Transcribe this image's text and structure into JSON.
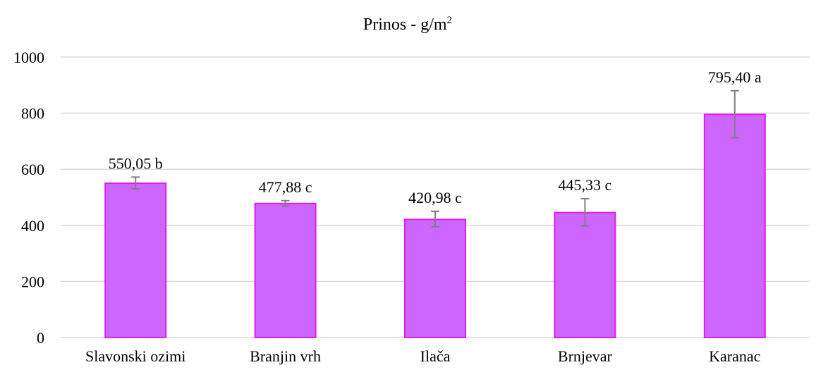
{
  "chart_data": {
    "type": "bar",
    "title": "Prinos - g/m",
    "title_superscript": "2",
    "xlabel": "",
    "ylabel": "",
    "categories": [
      "Slavonski ozimi",
      "Branjin vrh",
      "Ilača",
      "Brnjevar",
      "Karanac"
    ],
    "values": [
      550.05,
      477.88,
      420.98,
      445.33,
      795.4
    ],
    "data_labels": [
      "550,05 b",
      "477,88 c",
      "420,98 c",
      "445,33 c",
      "795,40 a"
    ],
    "error_bars": [
      {
        "low": 530,
        "high": 572
      },
      {
        "low": 468,
        "high": 488
      },
      {
        "low": 395,
        "high": 450
      },
      {
        "low": 398,
        "high": 495
      },
      {
        "low": 712,
        "high": 880
      }
    ],
    "ylim": [
      0,
      1000
    ],
    "yticks": [
      0,
      200,
      400,
      600,
      800,
      1000
    ],
    "ytick_labels": [
      "0",
      "200",
      "400",
      "600",
      "800",
      "1000"
    ],
    "grid": true,
    "legend": "none",
    "colors": {
      "bar_fill": "#cc66ff",
      "bar_stroke": "#e619e6",
      "grid": "#d9d9d9",
      "error_bar": "#7f7f7f"
    }
  }
}
